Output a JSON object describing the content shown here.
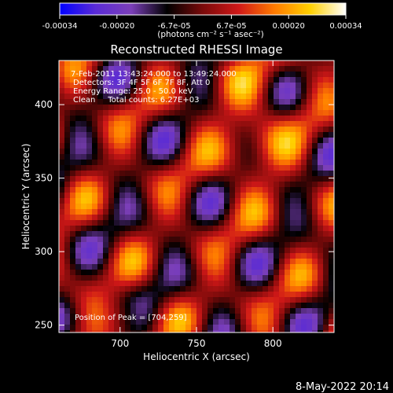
{
  "colorbar": {
    "ticks": [
      "-0.00034",
      "-0.00020",
      "-6.7e-05",
      "6.7e-05",
      "0.00020",
      "0.00034"
    ],
    "units": "(photons cm⁻² s⁻¹ asec⁻²)",
    "colormap": [
      "#0000ff",
      "#5a2bd6",
      "#7b3fb8",
      "#000000",
      "#7a0a0a",
      "#d01818",
      "#ff7a00",
      "#ffd000",
      "#ffffff"
    ]
  },
  "chart_data": {
    "type": "heatmap",
    "title": "Reconstructed RHESSI Image",
    "xlabel": "Heliocentric X (arcsec)",
    "ylabel": "Heliocentric Y (arcsec)",
    "xlim": [
      660,
      840
    ],
    "ylim": [
      245,
      430
    ],
    "xticks": [
      700,
      750,
      800
    ],
    "yticks": [
      250,
      300,
      350,
      400
    ],
    "annotations": [
      "7-Feb-2011 13:43:24.000 to 13:49:24.000",
      "Detectors: 3F 4F 5F 6F 7F 8F, Att 0",
      "Energy Range: 25.0 - 50.0 keV",
      "Clean     Total counts: 6.27E+03"
    ],
    "peak_label": "Position of Peak = [704,259]",
    "peak_position": [
      704,
      259
    ]
  },
  "footer": {
    "timestamp": "8-May-2022 20:14"
  }
}
